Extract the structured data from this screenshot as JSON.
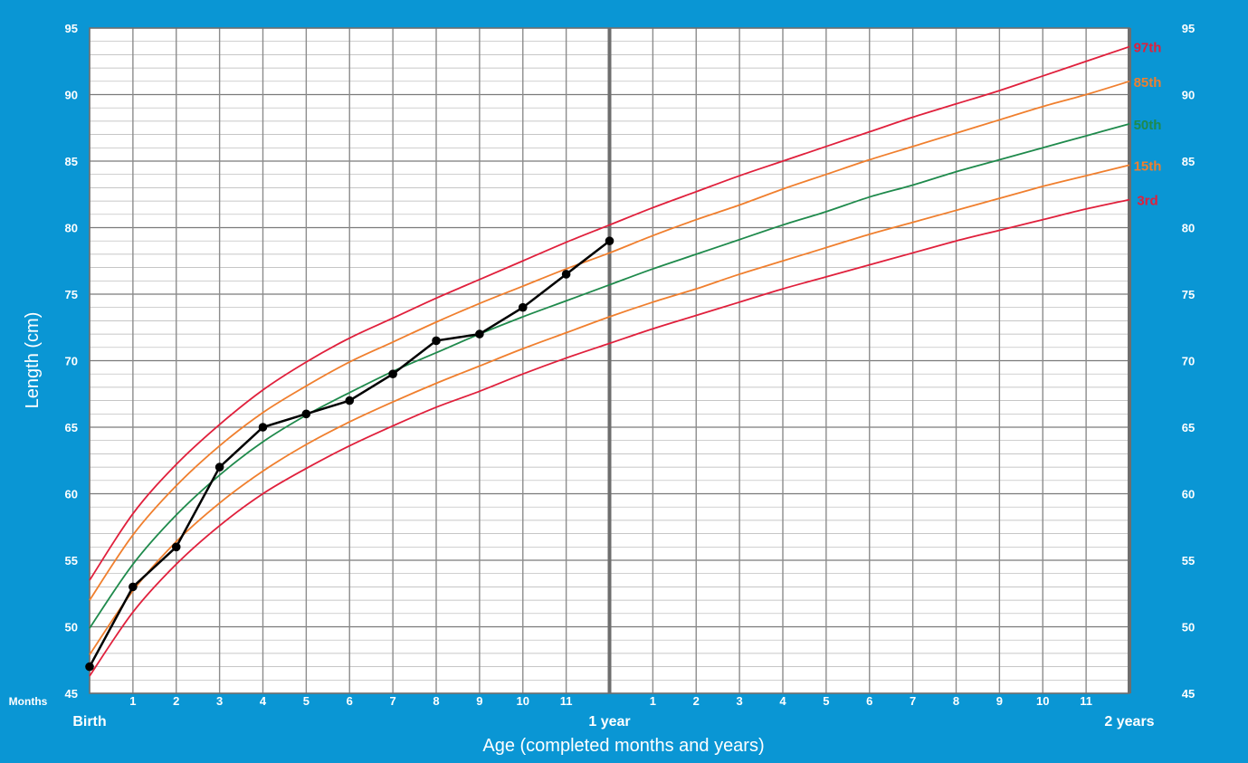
{
  "chart_data": {
    "type": "line",
    "title": "",
    "ylabel": "Length (cm)",
    "xlabel": "Age (completed months and years)",
    "ylim": [
      45,
      95
    ],
    "xlim": [
      0,
      24
    ],
    "y_ticks": [
      45,
      50,
      55,
      60,
      65,
      70,
      75,
      80,
      85,
      90,
      95
    ],
    "x_axis_row_label": "Months",
    "x_month_ticks": [
      {
        "x": 1,
        "label": "1"
      },
      {
        "x": 2,
        "label": "2"
      },
      {
        "x": 3,
        "label": "3"
      },
      {
        "x": 4,
        "label": "4"
      },
      {
        "x": 5,
        "label": "5"
      },
      {
        "x": 6,
        "label": "6"
      },
      {
        "x": 7,
        "label": "7"
      },
      {
        "x": 8,
        "label": "8"
      },
      {
        "x": 9,
        "label": "9"
      },
      {
        "x": 10,
        "label": "10"
      },
      {
        "x": 11,
        "label": "11"
      },
      {
        "x": 13,
        "label": "1"
      },
      {
        "x": 14,
        "label": "2"
      },
      {
        "x": 15,
        "label": "3"
      },
      {
        "x": 16,
        "label": "4"
      },
      {
        "x": 17,
        "label": "5"
      },
      {
        "x": 18,
        "label": "6"
      },
      {
        "x": 19,
        "label": "7"
      },
      {
        "x": 20,
        "label": "8"
      },
      {
        "x": 21,
        "label": "9"
      },
      {
        "x": 22,
        "label": "10"
      },
      {
        "x": 23,
        "label": "11"
      }
    ],
    "x_year_ticks": [
      {
        "x": 0,
        "label": "Birth"
      },
      {
        "x": 12,
        "label": "1 year"
      },
      {
        "x": 24,
        "label": "2 years"
      }
    ],
    "x": [
      0,
      1,
      2,
      3,
      4,
      5,
      6,
      7,
      8,
      9,
      10,
      11,
      12,
      13,
      14,
      15,
      16,
      17,
      18,
      19,
      20,
      21,
      22,
      23,
      24
    ],
    "series": [
      {
        "name": "97th",
        "color": "#e0203c",
        "values": [
          53.5,
          58.5,
          62.2,
          65.2,
          67.8,
          69.9,
          71.7,
          73.2,
          74.7,
          76.1,
          77.5,
          78.9,
          80.2,
          81.5,
          82.7,
          83.9,
          85.0,
          86.1,
          87.2,
          88.3,
          89.3,
          90.3,
          91.4,
          92.5,
          93.6
        ]
      },
      {
        "name": "85th",
        "color": "#f07f2e",
        "values": [
          52.0,
          56.9,
          60.6,
          63.6,
          66.1,
          68.1,
          69.9,
          71.4,
          72.9,
          74.3,
          75.6,
          76.9,
          78.1,
          79.4,
          80.6,
          81.7,
          82.9,
          84.0,
          85.1,
          86.1,
          87.1,
          88.1,
          89.1,
          90.0,
          91.0
        ]
      },
      {
        "name": "50th",
        "color": "#1f8a4c",
        "values": [
          49.9,
          54.7,
          58.4,
          61.4,
          63.9,
          65.9,
          67.6,
          69.2,
          70.6,
          72.0,
          73.3,
          74.5,
          75.7,
          76.9,
          78.0,
          79.1,
          80.2,
          81.2,
          82.3,
          83.2,
          84.2,
          85.1,
          86.0,
          86.9,
          87.8
        ]
      },
      {
        "name": "15th",
        "color": "#f07f2e",
        "values": [
          47.9,
          52.7,
          56.4,
          59.3,
          61.7,
          63.7,
          65.4,
          66.9,
          68.3,
          69.6,
          70.9,
          72.1,
          73.3,
          74.4,
          75.4,
          76.5,
          77.5,
          78.5,
          79.5,
          80.4,
          81.3,
          82.2,
          83.1,
          83.9,
          84.7
        ]
      },
      {
        "name": "3rd",
        "color": "#e0203c",
        "values": [
          46.3,
          51.1,
          54.7,
          57.6,
          60.0,
          61.9,
          63.6,
          65.1,
          66.5,
          67.7,
          69.0,
          70.2,
          71.3,
          72.4,
          73.4,
          74.4,
          75.4,
          76.3,
          77.2,
          78.1,
          79.0,
          79.8,
          80.6,
          81.4,
          82.1
        ]
      }
    ],
    "measurements": {
      "color": "#000000",
      "x": [
        0,
        1,
        2,
        3,
        4,
        5,
        6,
        7,
        8,
        9,
        10,
        11,
        12
      ],
      "values": [
        47,
        53,
        56,
        62,
        65,
        66,
        67,
        69,
        71.5,
        72,
        74,
        76.5,
        79
      ]
    },
    "grid": true,
    "legend": "labels at right end of each curve"
  }
}
